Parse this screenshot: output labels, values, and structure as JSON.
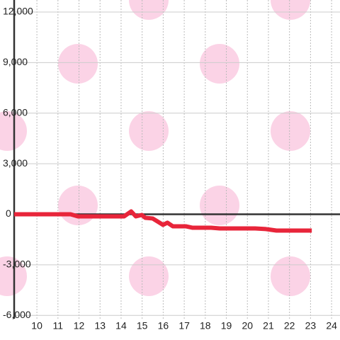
{
  "chart_data": {
    "type": "line",
    "x": [
      8.92,
      11.6,
      11.95,
      14.14,
      14.48,
      14.7,
      14.98,
      15.15,
      15.5,
      15.72,
      15.99,
      16.2,
      16.46,
      17.07,
      17.4,
      18.28,
      18.69,
      20.37,
      20.88,
      21.38,
      23.06
    ],
    "series": [
      {
        "color": "#e8253a",
        "values": [
          0,
          0,
          -126,
          -126,
          168,
          -126,
          -42,
          -210,
          -250,
          -420,
          -630,
          -500,
          -714,
          -714,
          -800,
          -800,
          -840,
          -840,
          -880,
          -966,
          -966
        ]
      }
    ],
    "xlim": [
      8.92,
      24.4
    ],
    "xticks": [
      10,
      11,
      12,
      13,
      14,
      15,
      16,
      17,
      18,
      19,
      20,
      21,
      22,
      23,
      24
    ],
    "ylim": [
      -6200,
      12000
    ],
    "yticks": [
      {
        "value": 12000,
        "label": "12,000"
      },
      {
        "value": 9000,
        "label": "9,000"
      },
      {
        "value": 6000,
        "label": "6,000"
      },
      {
        "value": 3000,
        "label": "3,000"
      },
      0,
      {
        "value": -3000,
        "label": "-3,000"
      },
      {
        "value": -6000,
        "label": "-6,000"
      }
    ],
    "grid": true
  }
}
